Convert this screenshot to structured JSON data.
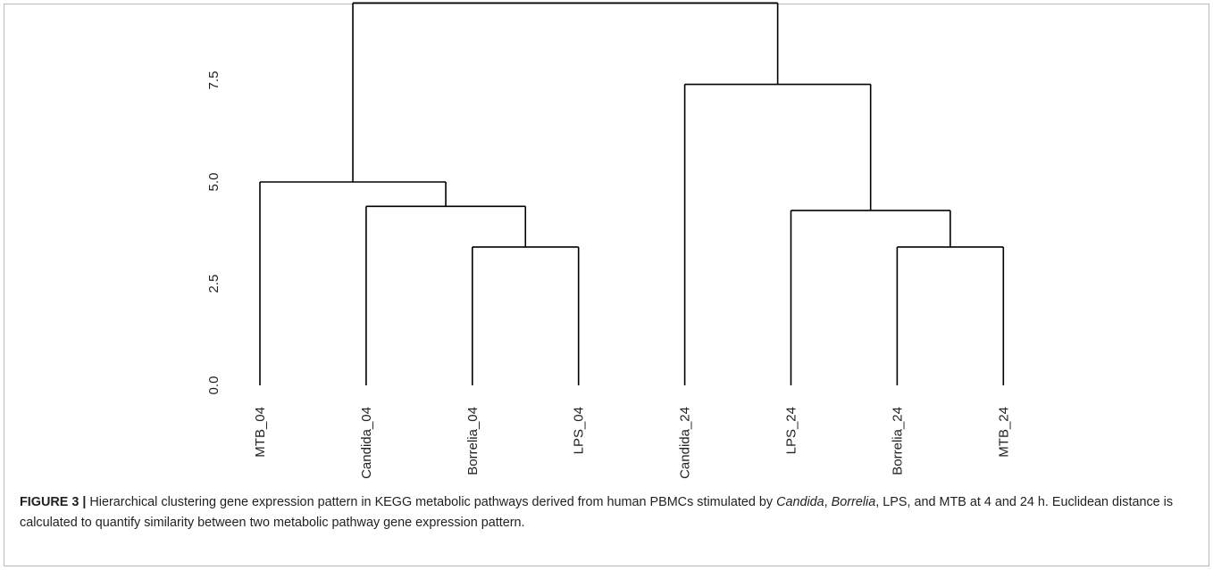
{
  "chart_data": {
    "type": "dendrogram",
    "title": "",
    "xlabel": "",
    "ylabel": "",
    "ylim": [
      0,
      9.5
    ],
    "yticks": [
      "0.0",
      "2.5",
      "5.0",
      "7.5"
    ],
    "yticks_values": [
      0,
      2.5,
      5,
      7.5
    ],
    "leaves": [
      "MTB_04",
      "Candida_04",
      "Borrelia_04",
      "LPS_04",
      "Candida_24",
      "LPS_24",
      "Borrelia_24",
      "MTB_24"
    ],
    "merges": [
      {
        "left": "Borrelia_04",
        "right": "LPS_04",
        "height": 3.4
      },
      {
        "left": "Candida_04",
        "right": "[Borrelia_04, LPS_04]",
        "height": 4.4
      },
      {
        "left": "MTB_04",
        "right": "[Candida_04, Borrelia_04, LPS_04]",
        "height": 5.0
      },
      {
        "left": "Borrelia_24",
        "right": "MTB_24",
        "height": 3.4
      },
      {
        "left": "LPS_24",
        "right": "[Borrelia_24, MTB_24]",
        "height": 4.3
      },
      {
        "left": "Candida_24",
        "right": "[LPS_24, Borrelia_24, MTB_24]",
        "height": 7.4
      },
      {
        "left": "[all _04]",
        "right": "[all _24]",
        "height": 9.4
      }
    ]
  },
  "caption": {
    "label": "FIGURE 3 |",
    "part1": " Hierarchical clustering gene expression pattern in KEGG metabolic pathways derived from human PBMCs stimulated by ",
    "candida": "Candida",
    "sep1": ", ",
    "borrelia": "Borrelia",
    "part2": ", LPS, and MTB at 4 and 24 h. Euclidean distance is calculated to quantify similarity between two metabolic pathway gene expression pattern."
  }
}
